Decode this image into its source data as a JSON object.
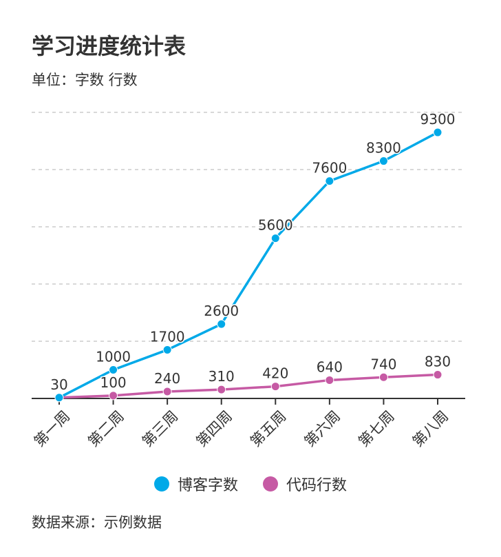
{
  "chart_data": {
    "type": "line",
    "title": "学习进度统计表",
    "subtitle": "单位：字数 行数",
    "source": "数据来源：示例数据",
    "categories": [
      "第一周",
      "第二周",
      "第三周",
      "第四周",
      "第五周",
      "第六周",
      "第七周",
      "第八周"
    ],
    "series": [
      {
        "name": "博客字数",
        "color": "#00a9e8",
        "values": [
          30,
          1000,
          1700,
          2600,
          5600,
          7600,
          8300,
          9300
        ]
      },
      {
        "name": "代码行数",
        "color": "#c65aa4",
        "values": [
          30,
          100,
          240,
          310,
          420,
          640,
          740,
          830
        ]
      }
    ],
    "ylim": [
      0,
      10000
    ],
    "grid_step": 2000,
    "grid": true,
    "legend": "bottom-center"
  }
}
